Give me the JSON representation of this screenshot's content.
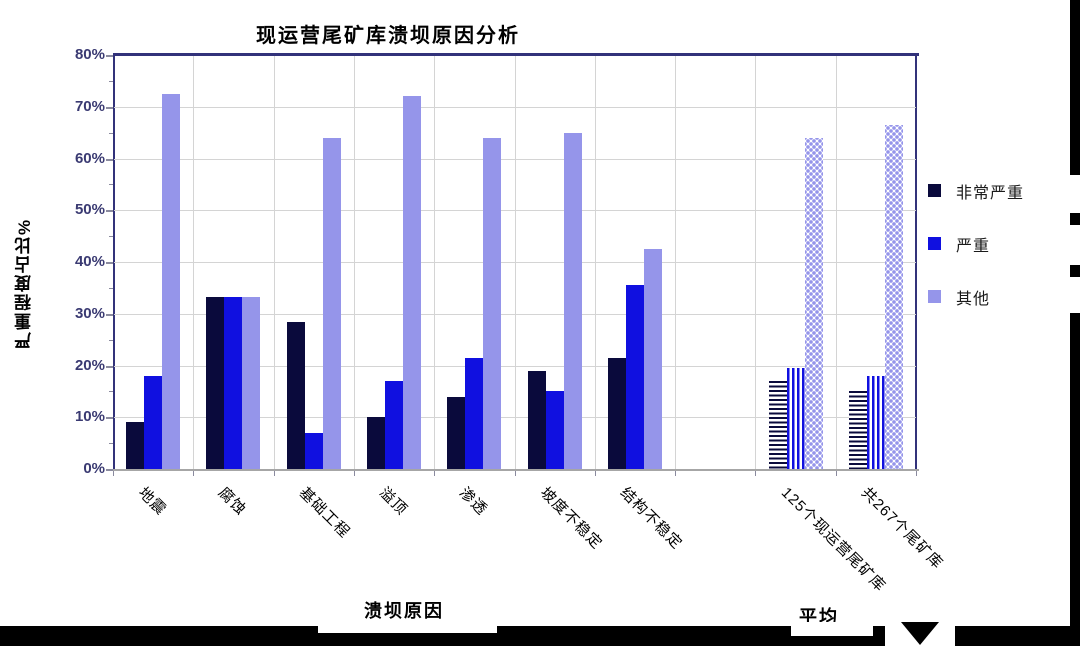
{
  "chart_data": {
    "type": "bar",
    "title": "现运营尾矿库溃坝原因分析",
    "xlabel": "溃坝原因",
    "xlabel_secondary": "平均",
    "ylabel": "严重程度占比%",
    "ylim": [
      0,
      80
    ],
    "ytick_step": 10,
    "ytick_labels": [
      "0%",
      "10%",
      "20%",
      "30%",
      "40%",
      "50%",
      "60%",
      "70%",
      "80%"
    ],
    "grid": true,
    "legend_position": "right",
    "categories": [
      "地震",
      "腐蚀",
      "基础工程",
      "溢顶",
      "渗透",
      "坡度不稳定",
      "结构不稳定",
      "",
      "125个现运营尾矿库",
      "共267个尾矿库"
    ],
    "series": [
      {
        "name": "非常严重",
        "color": "#0a0a3c",
        "average_pattern": "horizontal-stripes",
        "values": [
          9,
          33.3,
          28.5,
          10,
          14,
          19,
          21.5,
          null,
          17,
          15
        ]
      },
      {
        "name": "严重",
        "color": "#1010e0",
        "average_pattern": "vertical-stripes",
        "values": [
          18,
          33.3,
          7,
          17,
          21.5,
          15,
          35.5,
          null,
          19.5,
          18
        ]
      },
      {
        "name": "其他",
        "color": "#9595ea",
        "average_pattern": "dots",
        "values": [
          72.5,
          33.3,
          64,
          72,
          64,
          65,
          42.5,
          null,
          64,
          66.5
        ]
      }
    ],
    "pattern_categories": [
      "125个现运营尾矿库",
      "共267个尾矿库"
    ]
  },
  "colors": {
    "plot_border": "#32327a",
    "gridline": "#d4d4d4",
    "y_tick_label": "#3a3a72",
    "axis_bottom": "#a6a6a6",
    "banner": "#000000"
  }
}
